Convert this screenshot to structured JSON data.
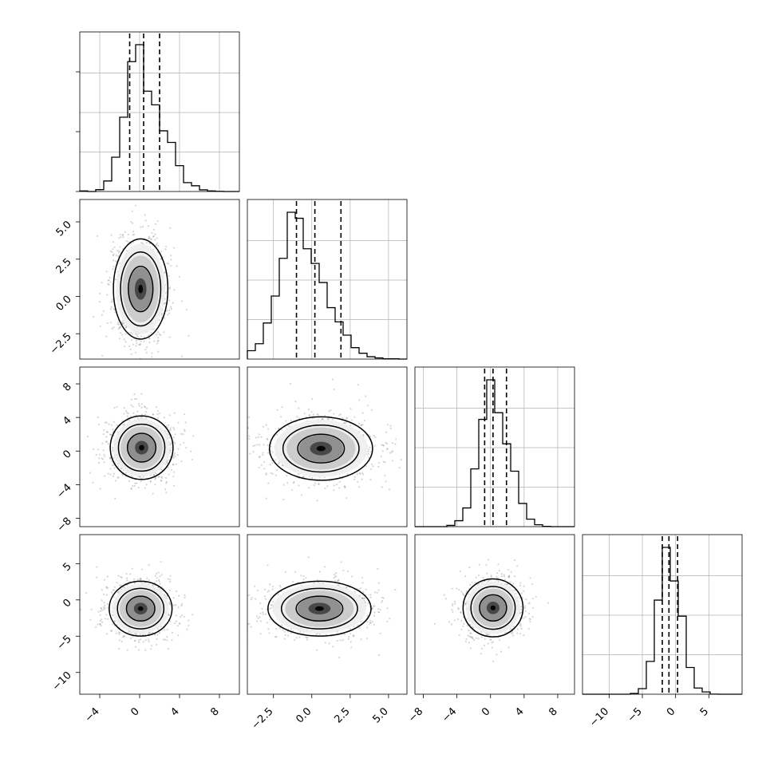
{
  "chart_data": {
    "type": "corner",
    "variables": [
      {
        "range": [
          -6,
          10
        ],
        "ticks": [
          -4,
          0,
          4,
          8
        ],
        "tick_labels": [
          "−4",
          "0",
          "4",
          "8"
        ],
        "quantiles": [
          -1.0,
          0.4,
          2.0
        ],
        "mode": 0.2,
        "sd": 1.4,
        "skew": 0.6
      },
      {
        "range": [
          -4.2,
          6.2
        ],
        "ticks": [
          -2.5,
          0.0,
          2.5,
          5.0
        ],
        "tick_labels": [
          "−2.5",
          "0.0",
          "2.5",
          "5.0"
        ],
        "quantiles": [
          -1.0,
          0.2,
          1.9
        ],
        "mode": -0.8,
        "sd": 1.2,
        "skew": 0.4
      },
      {
        "range": [
          -9,
          10
        ],
        "ticks": [
          -8,
          -4,
          0,
          4,
          8
        ],
        "tick_labels": [
          "−8",
          "−4",
          "0",
          "4",
          "8"
        ],
        "quantiles": [
          -0.7,
          0.3,
          1.9
        ],
        "mode": 0.3,
        "sd": 1.5,
        "skew": 0.3
      },
      {
        "range": [
          -14,
          10
        ],
        "ticks": [
          -10,
          -5,
          0,
          5
        ],
        "tick_labels": [
          "−10",
          "−5",
          "0",
          "5"
        ],
        "quantiles": [
          -2.0,
          -1.0,
          0.3
        ],
        "mode": -1.0,
        "sd": 1.5,
        "skew": 0.2
      }
    ],
    "y_ticks_left": [
      null,
      {
        "ticks": [
          -2.5,
          0.0,
          2.5,
          5.0
        ],
        "tick_labels": [
          "−2.5",
          "0.0",
          "2.5",
          "5.0"
        ],
        "range": [
          -4.2,
          6.5
        ]
      },
      {
        "ticks": [
          -8,
          -4,
          0,
          4,
          8
        ],
        "tick_labels": [
          "−8",
          "−4",
          "0",
          "4",
          "8"
        ],
        "range": [
          -9,
          10
        ]
      },
      {
        "ticks": [
          -10,
          -5,
          0,
          5
        ],
        "tick_labels": [
          "−10",
          "−5",
          "0",
          "5"
        ],
        "range": [
          -13,
          9
        ]
      }
    ],
    "pair_centers": [
      {
        "row": 1,
        "col": 0,
        "cx": 0.1,
        "cy": 0.5,
        "sx": 1.3,
        "sy": 1.6
      },
      {
        "row": 2,
        "col": 0,
        "cx": 0.2,
        "cy": 0.4,
        "sx": 1.5,
        "sy": 1.8
      },
      {
        "row": 2,
        "col": 1,
        "cx": 0.6,
        "cy": 0.3,
        "sx": 1.6,
        "sy": 1.8
      },
      {
        "row": 3,
        "col": 0,
        "cx": 0.1,
        "cy": -1.2,
        "sx": 1.5,
        "sy": 1.8
      },
      {
        "row": 3,
        "col": 1,
        "cx": 0.5,
        "cy": -1.2,
        "sx": 1.6,
        "sy": 1.8
      },
      {
        "row": 3,
        "col": 2,
        "cx": 0.3,
        "cy": -1.1,
        "sx": 1.7,
        "sy": 1.9
      }
    ],
    "grid": true,
    "title": "",
    "xlabel": "",
    "ylabel": ""
  },
  "colors": {
    "frame": "#000000",
    "grid": "#b0b0b0",
    "points": "#444444",
    "density_dark": "#000000"
  }
}
